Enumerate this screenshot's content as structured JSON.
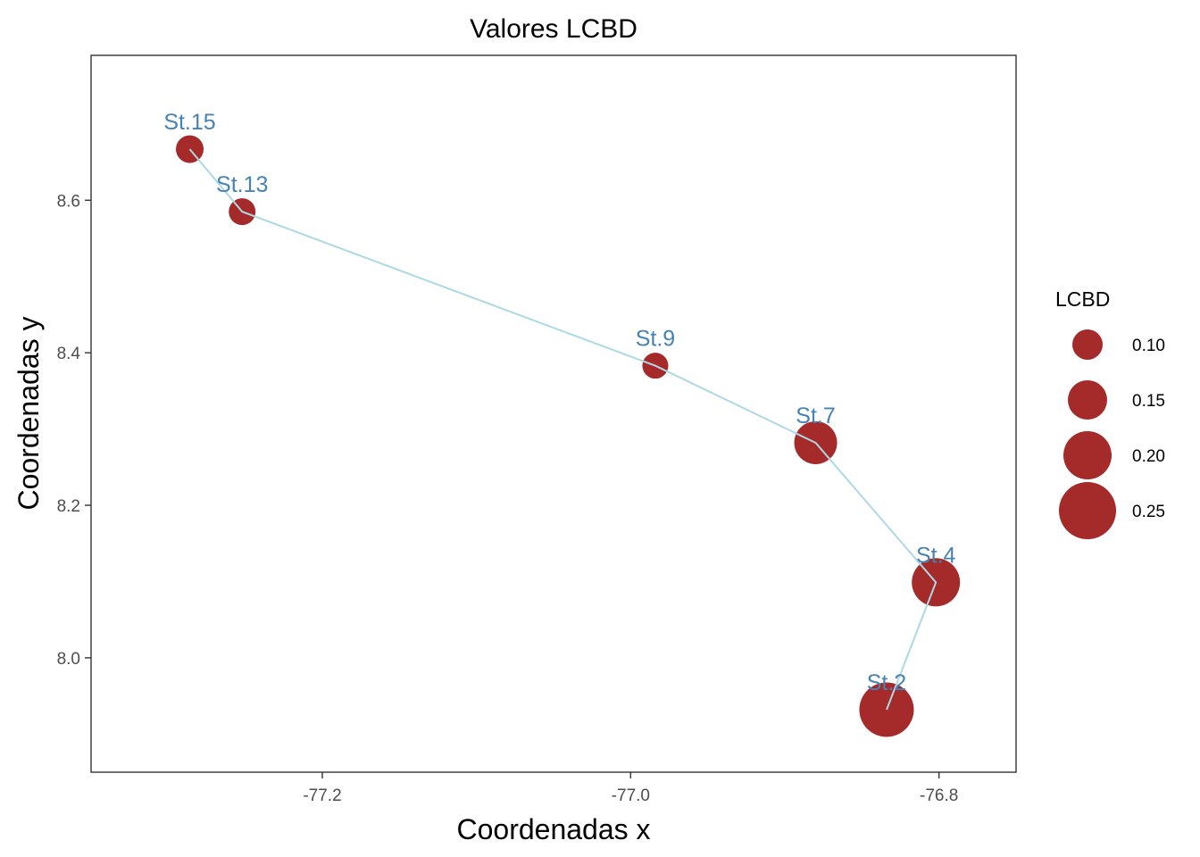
{
  "chart_data": {
    "type": "scatter",
    "title": "Valores LCBD",
    "xlabel": "Coordenadas x",
    "ylabel": "Coordenadas y",
    "xlim": [
      -77.35,
      -76.75
    ],
    "ylim": [
      7.85,
      8.79
    ],
    "x_ticks": [
      -77.2,
      -77.0,
      -76.8
    ],
    "x_tick_labels": [
      "-77.2",
      "-77.0",
      "-76.8"
    ],
    "y_ticks": [
      8.0,
      8.2,
      8.4,
      8.6
    ],
    "y_tick_labels": [
      "8.0",
      "8.2",
      "8.4",
      "8.6"
    ],
    "grid": false,
    "point_color": "#A52A2A",
    "label_color": "#4682B4",
    "path_color": "#ADD8E6",
    "points": [
      {
        "label": "St.15",
        "x": -77.286,
        "y": 8.667,
        "lcbd": 0.085
      },
      {
        "label": "St.13",
        "x": -77.252,
        "y": 8.585,
        "lcbd": 0.08
      },
      {
        "label": "St.9",
        "x": -76.984,
        "y": 8.383,
        "lcbd": 0.075
      },
      {
        "label": "St.7",
        "x": -76.88,
        "y": 8.282,
        "lcbd": 0.17
      },
      {
        "label": "St.4",
        "x": -76.802,
        "y": 8.099,
        "lcbd": 0.2
      },
      {
        "label": "St.2",
        "x": -76.834,
        "y": 7.932,
        "lcbd": 0.235
      }
    ],
    "path_order": [
      "St.15",
      "St.13",
      "St.9",
      "St.7",
      "St.4",
      "St.2"
    ],
    "legend": {
      "title": "LCBD",
      "position": "right",
      "entries": [
        {
          "label": "0.10",
          "value": 0.1
        },
        {
          "label": "0.15",
          "value": 0.15
        },
        {
          "label": "0.20",
          "value": 0.2
        },
        {
          "label": "0.25",
          "value": 0.25
        }
      ]
    }
  }
}
